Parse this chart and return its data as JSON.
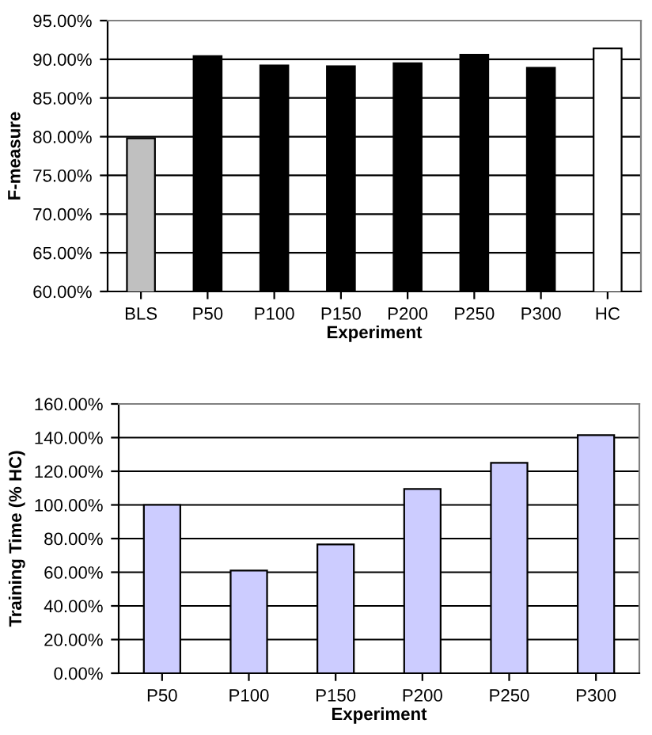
{
  "chart_data": [
    {
      "type": "bar",
      "xlabel": "Experiment",
      "ylabel": "F-measure",
      "categories": [
        "BLS",
        "P50",
        "P100",
        "P150",
        "P200",
        "P250",
        "P300",
        "HC"
      ],
      "values": [
        79.8,
        90.4,
        89.2,
        89.1,
        89.5,
        90.6,
        88.9,
        91.4
      ],
      "colors": [
        "#c0c0c0",
        "#000000",
        "#000000",
        "#000000",
        "#000000",
        "#000000",
        "#000000",
        "#ffffff"
      ],
      "ylim": [
        60,
        95
      ],
      "yticks": [
        {
          "value": 60,
          "label": "60.00%"
        },
        {
          "value": 65,
          "label": "65.00%"
        },
        {
          "value": 70,
          "label": "70.00%"
        },
        {
          "value": 75,
          "label": "75.00%"
        },
        {
          "value": 80,
          "label": "80.00%"
        },
        {
          "value": 85,
          "label": "85.00%"
        },
        {
          "value": 90,
          "label": "90.00%"
        },
        {
          "value": 95,
          "label": "95.00%"
        }
      ],
      "grid": "y"
    },
    {
      "type": "bar",
      "xlabel": "Experiment",
      "ylabel": "Training Time (% HC)",
      "categories": [
        "P50",
        "P100",
        "P150",
        "P200",
        "P250",
        "P300"
      ],
      "values": [
        100,
        61,
        76.5,
        109.5,
        125,
        141.5
      ],
      "color": "#ccccff",
      "ylim": [
        0,
        160
      ],
      "yticks": [
        {
          "value": 0,
          "label": "0.00%"
        },
        {
          "value": 20,
          "label": "20.00%"
        },
        {
          "value": 40,
          "label": "40.00%"
        },
        {
          "value": 60,
          "label": "60.00%"
        },
        {
          "value": 80,
          "label": "80.00%"
        },
        {
          "value": 100,
          "label": "100.00%"
        },
        {
          "value": 120,
          "label": "120.00%"
        },
        {
          "value": 140,
          "label": "140.00%"
        },
        {
          "value": 160,
          "label": "160.00%"
        }
      ],
      "grid": "y"
    }
  ]
}
